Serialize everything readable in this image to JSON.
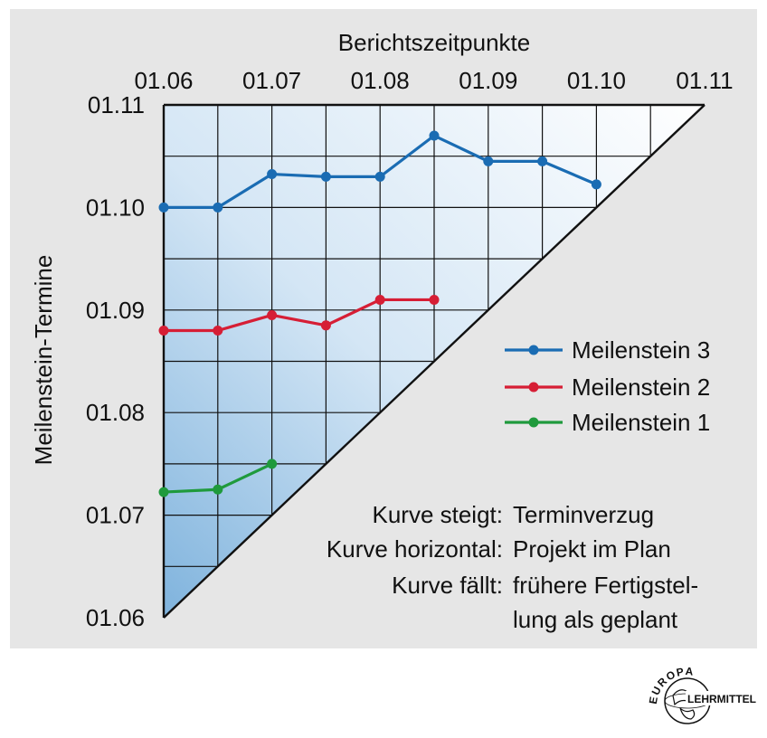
{
  "chart_data": {
    "type": "line",
    "title": "",
    "xlabel": "Berichtszeitpunkte",
    "ylabel": "Meilenstein-Termine",
    "x_ticks": [
      "01.06",
      "01.07",
      "01.08",
      "01.09",
      "01.10",
      "01.11"
    ],
    "y_ticks": [
      "01.06",
      "01.07",
      "01.08",
      "01.09",
      "01.10",
      "01.11"
    ],
    "xlim": [
      0,
      10
    ],
    "ylim": [
      0,
      10
    ],
    "tick_step": 2,
    "grid": true,
    "legend_position": "right",
    "series": [
      {
        "name": "Meilenstein 3",
        "color": "#1a6cb3",
        "x": [
          0,
          1,
          2,
          3,
          4,
          5,
          6,
          7,
          8
        ],
        "y": [
          8.0,
          8.0,
          8.65,
          8.6,
          8.6,
          9.4,
          8.9,
          8.9,
          8.45
        ]
      },
      {
        "name": "Meilenstein 2",
        "color": "#d61e35",
        "x": [
          0,
          1,
          2,
          3,
          4,
          5
        ],
        "y": [
          5.6,
          5.6,
          5.9,
          5.7,
          6.2,
          6.2
        ]
      },
      {
        "name": "Meilenstein 1",
        "color": "#1f9a3c",
        "x": [
          0,
          1,
          2
        ],
        "y": [
          2.45,
          2.5,
          3.0
        ]
      }
    ],
    "annotations": [
      {
        "label": "Kurve steigt:",
        "text": [
          "Terminverzug"
        ]
      },
      {
        "label": "Kurve horizontal:",
        "text": [
          "Projekt im Plan"
        ]
      },
      {
        "label": "Kurve fällt:",
        "text": [
          "frühere Fertigstel-",
          "lung als geplant"
        ]
      }
    ]
  },
  "logo": {
    "top_text": "EUROPA",
    "bottom_text": "LEHRMITTEL"
  }
}
